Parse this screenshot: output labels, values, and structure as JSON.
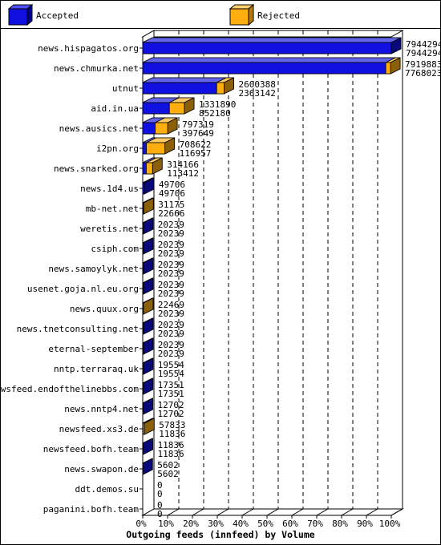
{
  "legend": {
    "accepted_label": "Accepted",
    "rejected_label": "Rejected"
  },
  "colors": {
    "accepted": "#1010e0",
    "rejected": "#ffae10"
  },
  "chart_data": {
    "type": "bar",
    "orientation": "horizontal",
    "title": "Outgoing feeds (innfeed) by Volume",
    "xlim": [
      0,
      100
    ],
    "x_ticks": [
      "0%",
      "10%",
      "20%",
      "30%",
      "40%",
      "50%",
      "60%",
      "70%",
      "80%",
      "90%",
      "100%"
    ],
    "legend_position": "top",
    "grid": "dashed vertical",
    "categories": [
      "news.hispagatos.org",
      "news.chmurka.net",
      "utnut",
      "aid.in.ua",
      "news.ausics.net",
      "i2pn.org",
      "news.snarked.org",
      "news.1d4.us",
      "mb-net.net",
      "weretis.net",
      "csiph.com",
      "news.samoylyk.net",
      "usenet.goja.nl.eu.org",
      "news.quux.org",
      "news.tnetconsulting.net",
      "eternal-september",
      "nntp.terraraq.uk",
      "newsfeed.endofthelinebbs.com",
      "news.nntp4.net",
      "newsfeed.xs3.de",
      "newsfeed.bofh.team",
      "news.swapon.de",
      "ddt.demos.su",
      "paganini.bofh.team"
    ],
    "series": [
      {
        "name": "Rejected",
        "values": [
          7944294,
          7919883,
          2600388,
          1331890,
          797319,
          708622,
          314166,
          49706,
          31175,
          20239,
          20239,
          20239,
          20239,
          22469,
          20239,
          20239,
          19554,
          17351,
          12702,
          57833,
          11836,
          5602,
          0,
          0
        ]
      },
      {
        "name": "Accepted",
        "values": [
          7944294,
          7768023,
          2363142,
          852180,
          397649,
          116957,
          113412,
          49706,
          22666,
          20239,
          20239,
          20239,
          20239,
          20239,
          20239,
          20239,
          19554,
          17351,
          12702,
          11836,
          11836,
          5602,
          0,
          0
        ]
      }
    ]
  }
}
